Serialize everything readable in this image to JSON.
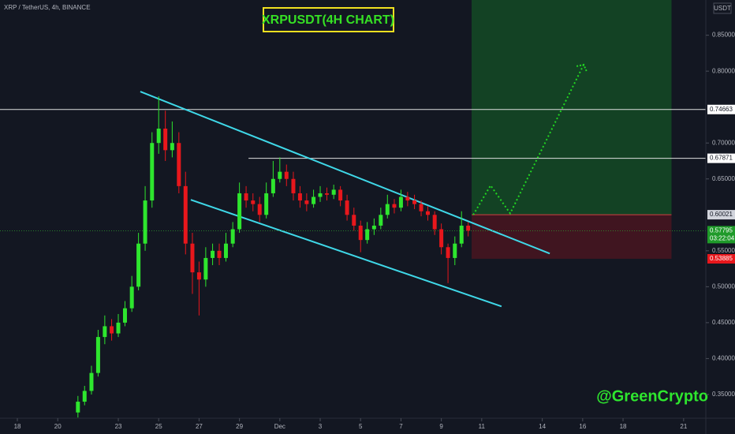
{
  "chart_data": {
    "type": "candlestick",
    "title": "XRPUSDT(4H CHART)",
    "symbol": "XRP / TetherUS, 4h, BINANCE",
    "currency": "USDT",
    "watermark": "@GreenCrypto",
    "up_color": "#2ee62e",
    "down_color": "#e8171c",
    "xlim": [
      -0.86,
      34.1
    ],
    "ylim": [
      0.317,
      0.899
    ],
    "xticks": [
      {
        "value": 0,
        "label": "18"
      },
      {
        "value": 2,
        "label": "20"
      },
      {
        "value": 5,
        "label": "23"
      },
      {
        "value": 7,
        "label": "25"
      },
      {
        "value": 9,
        "label": "27"
      },
      {
        "value": 11,
        "label": "29"
      },
      {
        "value": 13,
        "label": "Dec"
      },
      {
        "value": 15,
        "label": "3"
      },
      {
        "value": 17,
        "label": "5"
      },
      {
        "value": 19,
        "label": "7"
      },
      {
        "value": 21,
        "label": "9"
      },
      {
        "value": 23,
        "label": "11"
      },
      {
        "value": 26,
        "label": "14"
      },
      {
        "value": 28,
        "label": "16"
      },
      {
        "value": 30,
        "label": "18"
      },
      {
        "value": 33,
        "label": "21"
      }
    ],
    "yticks": [
      {
        "value": 0.85,
        "label": "0.85000"
      },
      {
        "value": 0.8,
        "label": "0.80000"
      },
      {
        "value": 0.7,
        "label": "0.70000"
      },
      {
        "value": 0.65,
        "label": "0.65000"
      },
      {
        "value": 0.55,
        "label": "0.55000"
      },
      {
        "value": 0.5,
        "label": "0.50000"
      },
      {
        "value": 0.45,
        "label": "0.45000"
      },
      {
        "value": 0.4,
        "label": "0.40000"
      },
      {
        "value": 0.35,
        "label": "0.35000"
      }
    ],
    "candles": {
      "x": [
        3,
        3.33,
        3.67,
        4,
        4.33,
        4.67,
        5,
        5.33,
        5.67,
        6,
        6.33,
        6.67,
        7,
        7.33,
        7.67,
        8,
        8.33,
        8.67,
        9,
        9.33,
        9.67,
        10,
        10.33,
        10.67,
        11,
        11.33,
        11.67,
        12,
        12.33,
        12.67,
        13,
        13.33,
        13.67,
        14,
        14.33,
        14.67,
        15,
        15.33,
        15.67,
        16,
        16.33,
        16.67,
        17,
        17.33,
        17.67,
        18,
        18.33,
        18.67,
        19,
        19.33,
        19.67,
        20,
        20.33,
        20.67,
        21,
        21.33,
        21.67,
        22,
        22.33
      ],
      "open": [
        0.325,
        0.34,
        0.355,
        0.38,
        0.43,
        0.445,
        0.435,
        0.45,
        0.47,
        0.5,
        0.56,
        0.62,
        0.7,
        0.72,
        0.69,
        0.7,
        0.64,
        0.56,
        0.52,
        0.51,
        0.54,
        0.55,
        0.54,
        0.56,
        0.58,
        0.63,
        0.62,
        0.615,
        0.6,
        0.63,
        0.65,
        0.66,
        0.65,
        0.63,
        0.62,
        0.615,
        0.625,
        0.63,
        0.628,
        0.635,
        0.62,
        0.6,
        0.585,
        0.565,
        0.58,
        0.585,
        0.6,
        0.615,
        0.61,
        0.625,
        0.62,
        0.615,
        0.605,
        0.6,
        0.58,
        0.555,
        0.54,
        0.56,
        0.585
      ],
      "high": [
        0.348,
        0.362,
        0.39,
        0.44,
        0.46,
        0.455,
        0.462,
        0.48,
        0.515,
        0.575,
        0.64,
        0.715,
        0.765,
        0.745,
        0.73,
        0.715,
        0.66,
        0.575,
        0.535,
        0.555,
        0.56,
        0.56,
        0.575,
        0.59,
        0.645,
        0.64,
        0.63,
        0.625,
        0.645,
        0.675,
        0.68,
        0.67,
        0.66,
        0.64,
        0.63,
        0.635,
        0.64,
        0.638,
        0.642,
        0.64,
        0.628,
        0.61,
        0.592,
        0.59,
        0.595,
        0.61,
        0.628,
        0.622,
        0.635,
        0.632,
        0.628,
        0.62,
        0.612,
        0.605,
        0.588,
        0.56,
        0.57,
        0.605,
        0.59
      ],
      "low": [
        0.318,
        0.335,
        0.35,
        0.375,
        0.42,
        0.425,
        0.43,
        0.445,
        0.465,
        0.495,
        0.55,
        0.61,
        0.685,
        0.675,
        0.68,
        0.63,
        0.545,
        0.49,
        0.46,
        0.5,
        0.53,
        0.53,
        0.535,
        0.555,
        0.575,
        0.61,
        0.605,
        0.59,
        0.595,
        0.625,
        0.645,
        0.64,
        0.62,
        0.61,
        0.605,
        0.61,
        0.618,
        0.62,
        0.622,
        0.612,
        0.592,
        0.578,
        0.548,
        0.56,
        0.572,
        0.58,
        0.595,
        0.602,
        0.605,
        0.612,
        0.608,
        0.598,
        0.592,
        0.572,
        0.545,
        0.505,
        0.53,
        0.555,
        0.57
      ],
      "close": [
        0.34,
        0.355,
        0.38,
        0.43,
        0.445,
        0.435,
        0.45,
        0.47,
        0.5,
        0.56,
        0.62,
        0.7,
        0.72,
        0.69,
        0.7,
        0.64,
        0.56,
        0.52,
        0.51,
        0.54,
        0.55,
        0.54,
        0.56,
        0.58,
        0.63,
        0.62,
        0.615,
        0.6,
        0.63,
        0.65,
        0.66,
        0.65,
        0.63,
        0.62,
        0.615,
        0.625,
        0.63,
        0.628,
        0.635,
        0.62,
        0.6,
        0.585,
        0.565,
        0.58,
        0.585,
        0.6,
        0.615,
        0.61,
        0.625,
        0.62,
        0.615,
        0.605,
        0.6,
        0.58,
        0.555,
        0.54,
        0.56,
        0.585,
        0.578
      ]
    },
    "levels": [
      {
        "value": 0.74663,
        "x_start": -0.86
      },
      {
        "value": 0.67871,
        "x_start": 11.45
      }
    ],
    "trendlines": [
      {
        "x": [
          6.09,
          26.37
        ],
        "y": [
          0.7715,
          0.5462
        ],
        "color": "#3fd8e8"
      },
      {
        "x": [
          8.59,
          23.98
        ],
        "y": [
          0.621,
          0.4726
        ],
        "color": "#3fd8e8"
      }
    ],
    "projection": {
      "x": [
        22.58,
        23.44,
        24.41,
        28.05
      ],
      "y": [
        0.6,
        0.641,
        0.602,
        0.809
      ],
      "color": "#22d622"
    },
    "position": {
      "x": [
        22.5,
        32.4
      ],
      "entry": 0.60021,
      "stop": 0.53885
    },
    "last": {
      "value": 0.57795,
      "countdown": "03:22:04"
    }
  }
}
